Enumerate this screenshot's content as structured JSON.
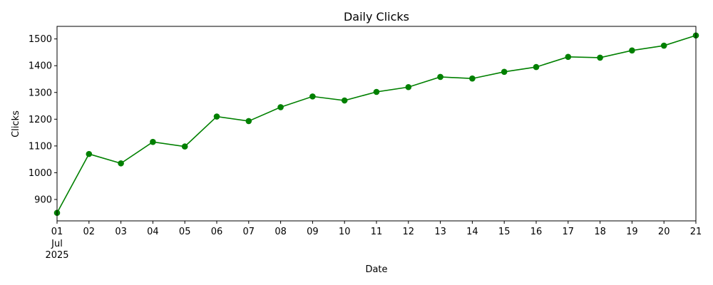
{
  "chart_data": {
    "type": "line",
    "title": "Daily Clicks",
    "xlabel": "Date",
    "ylabel": "Clicks",
    "x": [
      "2025-07-01",
      "2025-07-02",
      "2025-07-03",
      "2025-07-04",
      "2025-07-05",
      "2025-07-06",
      "2025-07-07",
      "2025-07-08",
      "2025-07-09",
      "2025-07-10",
      "2025-07-11",
      "2025-07-12",
      "2025-07-13",
      "2025-07-14",
      "2025-07-15",
      "2025-07-16",
      "2025-07-17",
      "2025-07-18",
      "2025-07-19",
      "2025-07-20",
      "2025-07-21"
    ],
    "x_tick_labels": [
      "01",
      "02",
      "03",
      "04",
      "05",
      "06",
      "07",
      "08",
      "09",
      "10",
      "11",
      "12",
      "13",
      "14",
      "15",
      "16",
      "17",
      "18",
      "19",
      "20",
      "21"
    ],
    "x_tick_sublabel": "Jul",
    "x_tick_year": "2025",
    "series": [
      {
        "values": [
          850,
          1070,
          1035,
          1115,
          1098,
          1210,
          1193,
          1245,
          1285,
          1270,
          1302,
          1320,
          1358,
          1352,
          1377,
          1395,
          1433,
          1430,
          1457,
          1475,
          1513
        ],
        "color": "#008000",
        "marker": "circle"
      }
    ],
    "y_ticks": [
      900,
      1000,
      1100,
      1200,
      1300,
      1400,
      1500
    ],
    "ylim": [
      820,
      1547
    ],
    "grid": false,
    "legend": "none"
  }
}
